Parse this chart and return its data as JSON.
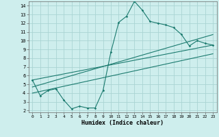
{
  "xlabel": "Humidex (Indice chaleur)",
  "bg_color": "#ceeeed",
  "grid_color": "#aad4d3",
  "line_color": "#1a7a6e",
  "xlim": [
    -0.5,
    23.5
  ],
  "ylim": [
    1.8,
    14.5
  ],
  "xticks": [
    0,
    1,
    2,
    3,
    4,
    5,
    6,
    7,
    8,
    9,
    10,
    11,
    12,
    13,
    14,
    15,
    16,
    17,
    18,
    19,
    20,
    21,
    22,
    23
  ],
  "yticks": [
    2,
    3,
    4,
    5,
    6,
    7,
    8,
    9,
    10,
    11,
    12,
    13,
    14
  ],
  "line1_x": [
    0,
    1,
    2,
    3,
    4,
    5,
    6,
    7,
    8,
    9,
    10,
    11,
    12,
    13,
    14,
    15,
    16,
    17,
    18,
    19,
    20,
    21,
    22,
    23
  ],
  "line1_y": [
    5.5,
    3.7,
    4.3,
    4.5,
    3.2,
    2.2,
    2.5,
    2.3,
    2.3,
    4.3,
    8.7,
    12.1,
    12.8,
    14.5,
    13.5,
    12.2,
    12.0,
    11.8,
    11.5,
    10.7,
    9.4,
    10.0,
    9.7,
    9.5
  ],
  "line2_x": [
    0,
    23
  ],
  "line2_y": [
    5.5,
    9.5
  ],
  "line3_x": [
    0,
    23
  ],
  "line3_y": [
    4.7,
    10.7
  ],
  "line4_x": [
    0,
    23
  ],
  "line4_y": [
    4.0,
    8.5
  ]
}
